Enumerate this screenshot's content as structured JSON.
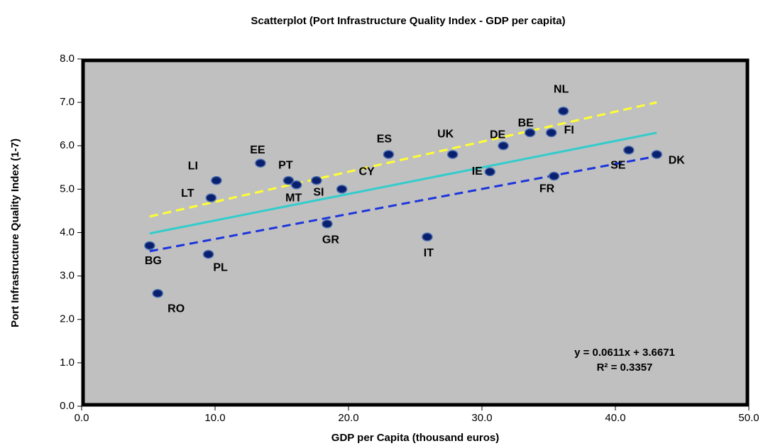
{
  "chart_data": {
    "type": "scatter",
    "title": "Scatterplot (Port Infrastructure Quality Index - GDP per capita)",
    "xlabel": "GDP per Capita (thousand euros)",
    "ylabel": "Port Infrastructure Quality Index (1-7)",
    "xlim": [
      0,
      50
    ],
    "ylim": [
      0,
      8
    ],
    "xticks": [
      {
        "value": 0,
        "label": "0.0"
      },
      {
        "value": 10,
        "label": "10.0"
      },
      {
        "value": 20,
        "label": "20.0"
      },
      {
        "value": 30,
        "label": "30.0"
      },
      {
        "value": 40,
        "label": "40.0"
      },
      {
        "value": 50,
        "label": "50.0"
      }
    ],
    "yticks": [
      {
        "value": 0,
        "label": "0.0"
      },
      {
        "value": 1,
        "label": "1.0"
      },
      {
        "value": 2,
        "label": "2.0"
      },
      {
        "value": 3,
        "label": "3.0"
      },
      {
        "value": 4,
        "label": "4.0"
      },
      {
        "value": 5,
        "label": "5.0"
      },
      {
        "value": 6,
        "label": "6.0"
      },
      {
        "value": 7,
        "label": "7.0"
      },
      {
        "value": 8,
        "label": "8.0"
      }
    ],
    "x": [
      5.1,
      5.7,
      9.5,
      9.7,
      10.1,
      13.4,
      15.5,
      16.1,
      17.6,
      18.4,
      19.5,
      23.0,
      25.9,
      27.8,
      30.6,
      31.6,
      33.6,
      35.2,
      36.1,
      35.4,
      41.0,
      43.1
    ],
    "series": [
      {
        "color": "#0a1f6e",
        "values": [
          3.7,
          2.6,
          3.5,
          4.8,
          5.2,
          5.6,
          5.2,
          5.1,
          5.2,
          4.2,
          5.0,
          5.8,
          3.9,
          5.8,
          5.4,
          6.0,
          6.3,
          6.3,
          6.8,
          5.3,
          5.9,
          5.8
        ],
        "labels": [
          "BG",
          "RO",
          "PL",
          "LT",
          "LI",
          "EE",
          "PT",
          "MT",
          "SI",
          "GR",
          "CY",
          "ES",
          "IT",
          "UK",
          "IE",
          "DE",
          "BE",
          "FI",
          "NL",
          "FR",
          "SE",
          "DK"
        ]
      }
    ],
    "lines": [
      {
        "color": "#ffff33",
        "dashed": true,
        "x": [
          5.1,
          43.1
        ],
        "values": [
          4.37,
          7.0
        ]
      },
      {
        "color": "#33cccc",
        "dashed": false,
        "x": [
          5.1,
          43.1
        ],
        "values": [
          3.98,
          6.3
        ]
      },
      {
        "color": "#1a33dd",
        "dashed": true,
        "x": [
          5.1,
          43.1
        ],
        "values": [
          3.57,
          5.76
        ]
      }
    ],
    "annotations": [
      "y = 0.0611x + 3.6671",
      "R² = 0.3357"
    ],
    "background": "#c0c0c0"
  }
}
